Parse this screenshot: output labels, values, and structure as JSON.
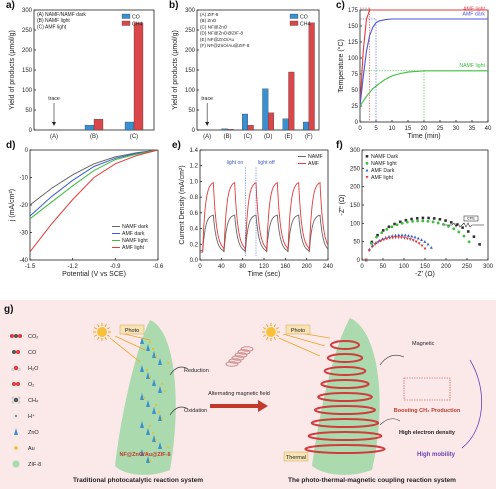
{
  "chart_data": [
    {
      "panel": "a)",
      "type": "bar",
      "ylabel": "Yield of products (μmol/g)",
      "ylim": [
        0,
        300
      ],
      "yticks": [
        0,
        50,
        100,
        150,
        200,
        250,
        300
      ],
      "categories": [
        "(A)",
        "(B)",
        "(C)"
      ],
      "group_legend": [
        "(A) NAMF/NAMF dark",
        "(B) NAMF light",
        "(C) AMF light"
      ],
      "series": [
        {
          "name": "CO",
          "color": "#3a8fd0",
          "values": [
            0,
            12,
            20
          ]
        },
        {
          "name": "CH4",
          "color": "#d9474a",
          "values": [
            0,
            27,
            268
          ]
        }
      ],
      "annotation": "trace"
    },
    {
      "panel": "b)",
      "type": "bar",
      "ylabel": "Yield of products (μmol/g)",
      "ylim": [
        0,
        300
      ],
      "yticks": [
        0,
        50,
        100,
        150,
        200,
        250,
        300
      ],
      "categories": [
        "(A)",
        "(B)",
        "(C)",
        "(D)",
        "(E)",
        "(F)"
      ],
      "group_legend": [
        "(A) ZIF-8",
        "(B) ZnO",
        "(C) NF@ZnO",
        "(D) NF@ZnO@ZIF-8",
        "(E) NF@ZnO/Au",
        "(F) NF@ZnO/Au@ZIF-8"
      ],
      "series": [
        {
          "name": "CO",
          "color": "#3a8fd0",
          "values": [
            0,
            3,
            40,
            103,
            28,
            20
          ]
        },
        {
          "name": "CH4",
          "color": "#d9474a",
          "values": [
            0,
            2,
            12,
            43,
            145,
            268
          ]
        }
      ],
      "annotation": "trace"
    },
    {
      "panel": "c)",
      "type": "line",
      "xlabel": "Time (min)",
      "ylabel": "Temperature (°C)",
      "xlim": [
        0,
        40
      ],
      "ylim": [
        0,
        175
      ],
      "xticks": [
        0,
        5,
        10,
        15,
        20,
        25,
        30,
        35,
        40
      ],
      "yticks": [
        0,
        25,
        50,
        75,
        100,
        125,
        150,
        175
      ],
      "series": [
        {
          "name": "AMF light",
          "color": "#e23b3b",
          "x": [
            0,
            1,
            2,
            3,
            4,
            6,
            10,
            20,
            30,
            40
          ],
          "y": [
            25,
            110,
            160,
            175,
            178,
            178,
            178,
            178,
            178,
            178
          ]
        },
        {
          "name": "AMF dark",
          "color": "#4a55d8",
          "x": [
            0,
            1,
            2,
            3,
            4,
            5,
            6,
            8,
            10,
            20,
            30,
            40
          ],
          "y": [
            25,
            70,
            110,
            135,
            148,
            155,
            158,
            160,
            161,
            161,
            161,
            161
          ]
        },
        {
          "name": "NAMF light",
          "color": "#3cbf3c",
          "x": [
            0,
            2,
            4,
            6,
            8,
            10,
            12,
            15,
            20,
            25,
            30,
            40
          ],
          "y": [
            25,
            40,
            52,
            60,
            67,
            72,
            75,
            78,
            80,
            80,
            80,
            80
          ]
        }
      ]
    },
    {
      "panel": "d)",
      "type": "line",
      "xlabel": "Potential (V vs SCE)",
      "ylabel": "j (mA/cm²)",
      "xlim": [
        -1.5,
        -0.6
      ],
      "ylim": [
        -40,
        0
      ],
      "xticks": [
        -1.5,
        -1.2,
        -0.9,
        -0.6
      ],
      "xticklabels": [
        "-1.5",
        "-1.2",
        "-0.9",
        "-0.6"
      ],
      "yticks": [
        -40,
        -30,
        -20,
        -10,
        0
      ],
      "series": [
        {
          "name": "NAMF dark",
          "color": "#666666",
          "x": [
            -1.5,
            -1.35,
            -1.2,
            -1.05,
            -0.9,
            -0.75,
            -0.6
          ],
          "y": [
            -20,
            -14,
            -9,
            -5,
            -2.5,
            -1,
            0
          ]
        },
        {
          "name": "AMF dark",
          "color": "#3a5fd0",
          "x": [
            -1.5,
            -1.35,
            -1.2,
            -1.05,
            -0.9,
            -0.75,
            -0.6
          ],
          "y": [
            -24,
            -17,
            -11,
            -6,
            -3,
            -1.2,
            0
          ]
        },
        {
          "name": "NAMF light",
          "color": "#3cbf3c",
          "x": [
            -1.5,
            -1.35,
            -1.2,
            -1.05,
            -0.9,
            -0.75,
            -0.6
          ],
          "y": [
            -25,
            -19,
            -13,
            -7.5,
            -3.5,
            -1.5,
            0
          ]
        },
        {
          "name": "AMF light",
          "color": "#e23b3b",
          "x": [
            -1.5,
            -1.35,
            -1.2,
            -1.05,
            -0.9,
            -0.75,
            -0.6
          ],
          "y": [
            -37,
            -27,
            -18,
            -10,
            -5,
            -2,
            0
          ]
        }
      ]
    },
    {
      "panel": "e)",
      "type": "line",
      "xlabel": "Time (sec)",
      "ylabel": "Current Density (mA/cm²)",
      "xlim": [
        0,
        240
      ],
      "ylim": [
        0,
        1.4
      ],
      "xticks": [
        0,
        40,
        80,
        120,
        160,
        200,
        240
      ],
      "yticks": [
        0.0,
        0.2,
        0.4,
        0.6,
        0.8,
        1.0,
        1.2,
        1.4
      ],
      "yticklabels": [
        "0.0",
        "0.2",
        "0.4",
        "0.6",
        "0.8",
        "1.0",
        "1.2",
        "1.4"
      ],
      "annotations": [
        "light on",
        "light off"
      ],
      "series": [
        {
          "name": "NAMF",
          "color": "#666666",
          "period": 40,
          "on_peak": 0.58,
          "off_level": 0.1
        },
        {
          "name": "AMF",
          "color": "#e23b3b",
          "period": 40,
          "on_peak": 1.0,
          "off_level": 0.12
        }
      ]
    },
    {
      "panel": "f)",
      "type": "scatter",
      "xlabel": "-Z' (Ω)",
      "ylabel": "-Z\" (Ω)",
      "xlim": [
        0,
        300
      ],
      "ylim": [
        0,
        300
      ],
      "xticks": [
        0,
        50,
        100,
        150,
        200,
        250,
        300
      ],
      "yticks": [
        0,
        50,
        100,
        150,
        200,
        250,
        300
      ],
      "series": [
        {
          "name": "NAMF Dark",
          "color": "#333333",
          "marker": "square",
          "radius": 140,
          "xmax": 280
        },
        {
          "name": "NAMF light",
          "color": "#3cbf3c",
          "marker": "circle",
          "radius": 130,
          "xmax": 255
        },
        {
          "name": "AMF Dark",
          "color": "#3a5fd0",
          "marker": "triangle-up",
          "radius": 83,
          "xmax": 165
        },
        {
          "name": "AMF light",
          "color": "#e23b3b",
          "marker": "triangle-down",
          "radius": 75,
          "xmax": 150
        }
      ],
      "inset": "equivalent-circuit-icon",
      "inset_label": "CPE"
    }
  ],
  "schematic": {
    "panel": "g)",
    "legend": [
      {
        "label": "CO₂",
        "icon": "co2-molecule-icon"
      },
      {
        "label": "CO",
        "icon": "co-molecule-icon"
      },
      {
        "label": "H₂O",
        "icon": "h2o-molecule-icon"
      },
      {
        "label": "O₂",
        "icon": "o2-molecule-icon"
      },
      {
        "label": "CH₄",
        "icon": "ch4-molecule-icon"
      },
      {
        "label": "H⁺",
        "icon": "proton-icon"
      },
      {
        "label": "ZnO",
        "icon": "zno-rod-icon"
      },
      {
        "label": "Au",
        "icon": "au-particle-icon"
      },
      {
        "label": "ZIF-8",
        "icon": "zif8-sphere-icon"
      }
    ],
    "left_title": "Traditional photocatalytic reaction system",
    "left_material": "NF@ZnO/Au@ZIF-8",
    "left_labels": [
      "Photo",
      "Reduction",
      "Oxidation"
    ],
    "arrow_label": "Alternating magnetic field",
    "right_title": "The photo-thermal-magnetic coupling reaction system",
    "right_labels": [
      "Photo",
      "Magnetic",
      "Thermal",
      "Boosting CH₄ Production",
      "High electron density",
      "High mobility"
    ],
    "colors": {
      "bg": "#fbe9ea",
      "cone": "#8fd49a",
      "coil": "#d23b3b",
      "arrow": "#c0392b",
      "mobility": "#6a3fb5"
    }
  }
}
